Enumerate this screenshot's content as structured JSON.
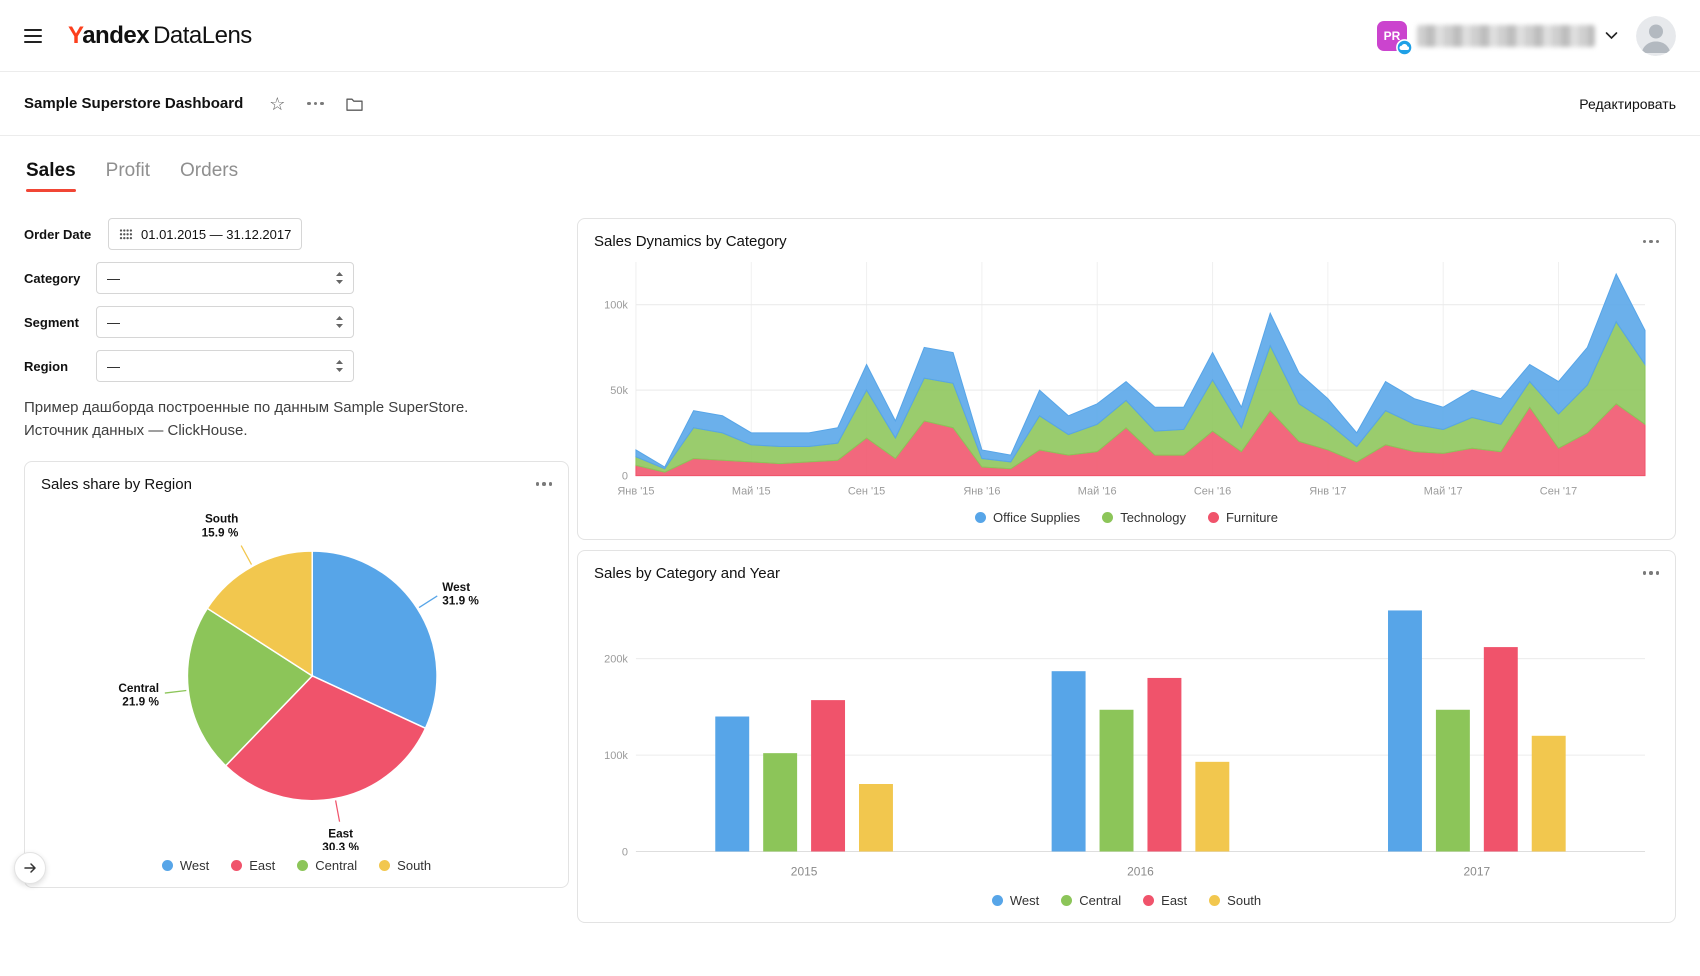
{
  "header": {
    "logo_y": "Y",
    "logo_rest": "andex",
    "logo_product": "DataLens",
    "org_badge": "PR"
  },
  "toolbar": {
    "title": "Sample Superstore Dashboard",
    "edit_label": "Редактировать"
  },
  "tabs": {
    "active": "Sales",
    "items": [
      {
        "label": "Sales"
      },
      {
        "label": "Profit"
      },
      {
        "label": "Orders"
      }
    ]
  },
  "filters": {
    "order_date": {
      "label": "Order Date",
      "value": "01.01.2015 — 31.12.2017"
    },
    "category": {
      "label": "Category",
      "value": "—"
    },
    "segment": {
      "label": "Segment",
      "value": "—"
    },
    "region": {
      "label": "Region",
      "value": "—"
    },
    "description": [
      "Пример дашборда построенные по данным Sample SuperStore.",
      "Источник данных — ClickHouse."
    ]
  },
  "colors": {
    "brand_red": "#FC3F1D",
    "tab_accent": "#F14635",
    "badge_magenta": "#CB44CE",
    "cloud_badge_blue": "#1FA0E6",
    "series_blue": "#57A5E8",
    "series_red": "#F0536B",
    "series_green": "#8CC559",
    "series_yellow": "#F2C74E"
  },
  "chart_data": [
    {
      "type": "pie",
      "title": "Sales share by Region",
      "slices": [
        {
          "name": "West",
          "value": 31.9,
          "pct_label": "31.9 %",
          "color": "#57A5E8"
        },
        {
          "name": "East",
          "value": 30.3,
          "pct_label": "30.3 %",
          "color": "#F0536B"
        },
        {
          "name": "Central",
          "value": 21.9,
          "pct_label": "21.9 %",
          "color": "#8CC559"
        },
        {
          "name": "South",
          "value": 15.9,
          "pct_label": "15.9 %",
          "color": "#F2C74E"
        }
      ],
      "legend": [
        "West",
        "East",
        "Central",
        "South"
      ]
    },
    {
      "type": "area",
      "title": "Sales Dynamics by Category",
      "stacked": true,
      "unit": "k",
      "x_ticks": [
        "Янв '15",
        "Май '15",
        "Сен '15",
        "Янв '16",
        "Май '16",
        "Сен '16",
        "Янв '17",
        "Май '17",
        "Сен '17"
      ],
      "x_tick_every": 4,
      "y_ticks": [
        0,
        50,
        100
      ],
      "y_tick_labels": [
        "0",
        "50k",
        "100k"
      ],
      "ylim": [
        0,
        125
      ],
      "series": [
        {
          "name": "Furniture",
          "color": "#F0536B",
          "values": [
            6,
            2,
            10,
            9,
            8,
            7,
            8,
            9,
            22,
            10,
            32,
            28,
            5,
            4,
            15,
            12,
            14,
            28,
            12,
            12,
            26,
            14,
            38,
            20,
            15,
            8,
            18,
            14,
            13,
            16,
            14,
            40,
            16,
            25,
            42,
            30
          ]
        },
        {
          "name": "Technology",
          "color": "#8CC559",
          "values": [
            5,
            2,
            18,
            16,
            10,
            10,
            9,
            10,
            28,
            12,
            25,
            26,
            5,
            4,
            20,
            12,
            16,
            16,
            14,
            15,
            30,
            14,
            38,
            22,
            16,
            9,
            20,
            16,
            14,
            18,
            16,
            15,
            20,
            28,
            48,
            35
          ]
        },
        {
          "name": "Office Supplies",
          "color": "#57A5E8",
          "values": [
            4,
            1,
            10,
            10,
            7,
            8,
            8,
            9,
            15,
            10,
            18,
            18,
            5,
            4,
            15,
            11,
            12,
            11,
            14,
            13,
            16,
            12,
            19,
            18,
            14,
            8,
            17,
            15,
            13,
            16,
            15,
            10,
            19,
            22,
            28,
            20
          ]
        }
      ],
      "legend": [
        "Office Supplies",
        "Technology",
        "Furniture"
      ]
    },
    {
      "type": "bar",
      "title": "Sales by Category and Year",
      "unit": "k",
      "categories": [
        "2015",
        "2016",
        "2017"
      ],
      "y_ticks": [
        0,
        100,
        200
      ],
      "y_tick_labels": [
        "0",
        "100k",
        "200k"
      ],
      "ylim": [
        0,
        265
      ],
      "series": [
        {
          "name": "West",
          "color": "#57A5E8",
          "values": [
            140,
            187,
            250
          ]
        },
        {
          "name": "Central",
          "color": "#8CC559",
          "values": [
            102,
            147,
            147
          ]
        },
        {
          "name": "East",
          "color": "#F0536B",
          "values": [
            157,
            180,
            212
          ]
        },
        {
          "name": "South",
          "color": "#F2C74E",
          "values": [
            70,
            93,
            120
          ]
        }
      ],
      "legend": [
        "West",
        "Central",
        "East",
        "South"
      ]
    }
  ]
}
